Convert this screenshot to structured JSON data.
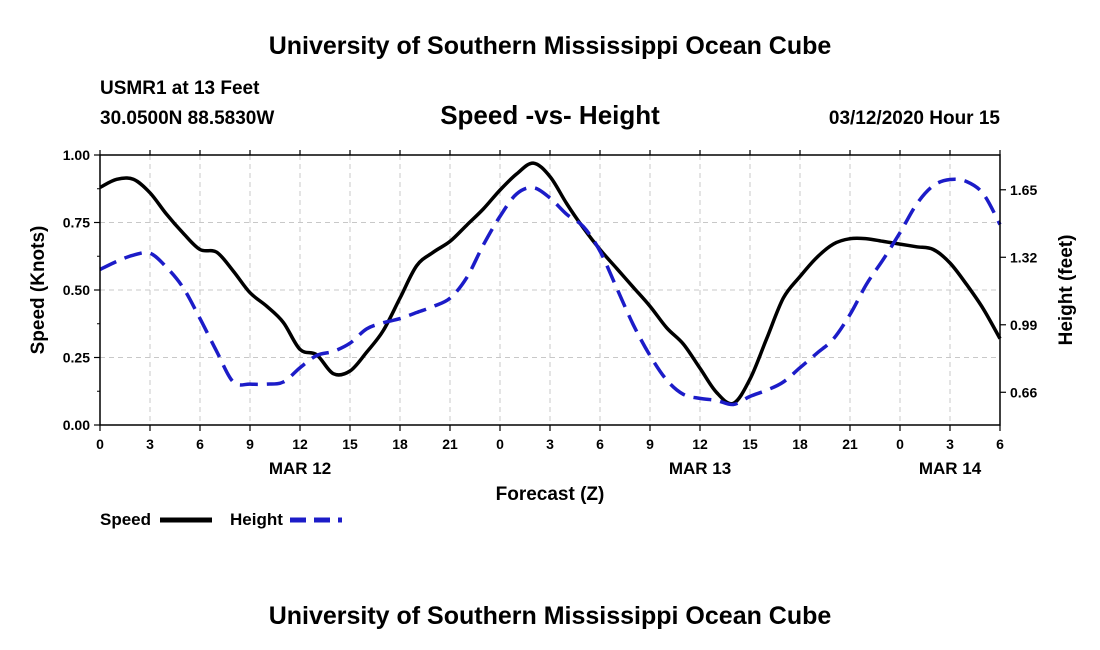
{
  "page": {
    "title_top": "University of Southern Mississippi Ocean Cube",
    "title_bottom": "University of Southern Mississippi Ocean Cube",
    "station": "USMR1 at 13 Feet",
    "coords": "30.0500N 88.5830W",
    "timestamp": "03/12/2020 Hour 15"
  },
  "chart_data": {
    "type": "line",
    "title": "Speed -vs- Height",
    "xlabel": "Forecast (Z)",
    "ylabel": "Speed (Knots)",
    "y2label": "Height (feet)",
    "x_hours_range": [
      0,
      54
    ],
    "ylim": [
      0,
      1.0
    ],
    "y2lim": [
      0.5,
      1.82
    ],
    "x_ticks": [
      {
        "h": 0,
        "label": "0"
      },
      {
        "h": 3,
        "label": "3"
      },
      {
        "h": 6,
        "label": "6"
      },
      {
        "h": 9,
        "label": "9"
      },
      {
        "h": 12,
        "label": "12"
      },
      {
        "h": 15,
        "label": "15"
      },
      {
        "h": 18,
        "label": "18"
      },
      {
        "h": 21,
        "label": "21"
      },
      {
        "h": 24,
        "label": "0"
      },
      {
        "h": 27,
        "label": "3"
      },
      {
        "h": 30,
        "label": "6"
      },
      {
        "h": 33,
        "label": "9"
      },
      {
        "h": 36,
        "label": "12"
      },
      {
        "h": 39,
        "label": "15"
      },
      {
        "h": 42,
        "label": "18"
      },
      {
        "h": 45,
        "label": "21"
      },
      {
        "h": 48,
        "label": "0"
      },
      {
        "h": 51,
        "label": "3"
      },
      {
        "h": 54,
        "label": "6"
      }
    ],
    "y_ticks": [
      {
        "v": 0.0,
        "label": "0.00"
      },
      {
        "v": 0.25,
        "label": "0.25"
      },
      {
        "v": 0.5,
        "label": "0.50"
      },
      {
        "v": 0.75,
        "label": "0.75"
      },
      {
        "v": 1.0,
        "label": "1.00"
      }
    ],
    "y2_ticks": [
      {
        "v": 0.66,
        "label": "0.66"
      },
      {
        "v": 0.99,
        "label": "0.99"
      },
      {
        "v": 1.32,
        "label": "1.32"
      },
      {
        "v": 1.65,
        "label": "1.65"
      }
    ],
    "date_labels": [
      {
        "h": 12,
        "label": "MAR 12"
      },
      {
        "h": 36,
        "label": "MAR 13"
      },
      {
        "h": 51,
        "label": "MAR 14"
      }
    ],
    "grid": true,
    "legend_position": "bottom-left",
    "series": [
      {
        "name": "Speed",
        "axis": "left",
        "color": "#000000",
        "style": "solid",
        "x": [
          0,
          1,
          2,
          3,
          4,
          5,
          6,
          7,
          8,
          9,
          10,
          11,
          12,
          13,
          14,
          15,
          16,
          17,
          18,
          19,
          20,
          21,
          22,
          23,
          24,
          25,
          26,
          27,
          28,
          29,
          30,
          31,
          32,
          33,
          34,
          35,
          36,
          37,
          38,
          39,
          40,
          41,
          42,
          43,
          44,
          45,
          46,
          47,
          48,
          49,
          50,
          51,
          52,
          53,
          54
        ],
        "values": [
          0.88,
          0.91,
          0.91,
          0.86,
          0.78,
          0.71,
          0.65,
          0.64,
          0.57,
          0.49,
          0.44,
          0.38,
          0.28,
          0.26,
          0.19,
          0.2,
          0.27,
          0.35,
          0.47,
          0.59,
          0.64,
          0.68,
          0.74,
          0.8,
          0.87,
          0.93,
          0.97,
          0.92,
          0.82,
          0.73,
          0.65,
          0.58,
          0.51,
          0.44,
          0.36,
          0.3,
          0.21,
          0.12,
          0.08,
          0.17,
          0.32,
          0.47,
          0.55,
          0.62,
          0.67,
          0.69,
          0.69,
          0.68,
          0.67,
          0.66,
          0.65,
          0.6,
          0.52,
          0.43,
          0.32
        ]
      },
      {
        "name": "Height",
        "axis": "right",
        "color": "#1c1cc8",
        "style": "dashed",
        "x": [
          0,
          1,
          2,
          3,
          4,
          5,
          6,
          7,
          8,
          9,
          10,
          11,
          12,
          13,
          14,
          15,
          16,
          17,
          18,
          19,
          20,
          21,
          22,
          23,
          24,
          25,
          26,
          27,
          28,
          29,
          30,
          31,
          32,
          33,
          34,
          35,
          36,
          37,
          38,
          39,
          40,
          41,
          42,
          43,
          44,
          45,
          46,
          47,
          48,
          49,
          50,
          51,
          52,
          53,
          54
        ],
        "values": [
          1.26,
          1.3,
          1.33,
          1.34,
          1.27,
          1.17,
          1.02,
          0.86,
          0.71,
          0.7,
          0.7,
          0.71,
          0.78,
          0.84,
          0.86,
          0.9,
          0.97,
          1.0,
          1.02,
          1.05,
          1.08,
          1.12,
          1.22,
          1.38,
          1.52,
          1.63,
          1.66,
          1.61,
          1.53,
          1.47,
          1.35,
          1.17,
          0.99,
          0.84,
          0.72,
          0.65,
          0.63,
          0.62,
          0.6,
          0.64,
          0.67,
          0.71,
          0.78,
          0.85,
          0.92,
          1.04,
          1.19,
          1.31,
          1.44,
          1.58,
          1.67,
          1.7,
          1.69,
          1.63,
          1.48
        ]
      }
    ]
  }
}
